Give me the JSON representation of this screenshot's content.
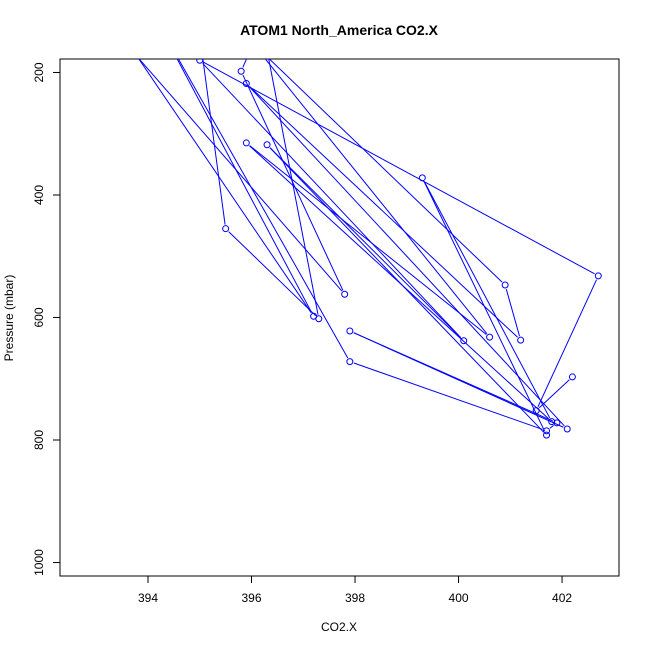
{
  "chart_data": {
    "type": "line",
    "title": "ATOM1 North_America CO2.X",
    "xlabel": "CO2.X",
    "ylabel": "Pressure (mbar)",
    "xlim": [
      392.3,
      403.1
    ],
    "ylim": [
      1022,
      178
    ],
    "x_ticks": [
      394,
      396,
      398,
      400,
      402
    ],
    "y_ticks": [
      200,
      400,
      600,
      800,
      1000
    ],
    "grid": false,
    "line_color": "#0000ff",
    "series": [
      {
        "points": [
          [
            395.0,
            140
          ],
          [
            395.5,
            455
          ],
          [
            397.3,
            602
          ],
          [
            396.2,
            120
          ],
          [
            395.8,
            198
          ],
          [
            397.8,
            562
          ],
          [
            393.8,
            175
          ],
          [
            397.2,
            598
          ],
          [
            394.2,
            120
          ],
          [
            397.9,
            672
          ],
          [
            401.7,
            785
          ],
          [
            401.9,
            772
          ],
          [
            397.9,
            622
          ],
          [
            402.1,
            782
          ],
          [
            395.9,
            218
          ],
          [
            401.2,
            637
          ],
          [
            400.9,
            547
          ],
          [
            396.0,
            150
          ],
          [
            400.6,
            632
          ],
          [
            395.9,
            315
          ],
          [
            401.8,
            770
          ],
          [
            399.3,
            372
          ],
          [
            401.7,
            792
          ],
          [
            396.3,
            318
          ],
          [
            400.1,
            638
          ],
          [
            395.0,
            180
          ],
          [
            402.7,
            532
          ],
          [
            401.5,
            752
          ],
          [
            402.2,
            697
          ]
        ]
      }
    ]
  }
}
